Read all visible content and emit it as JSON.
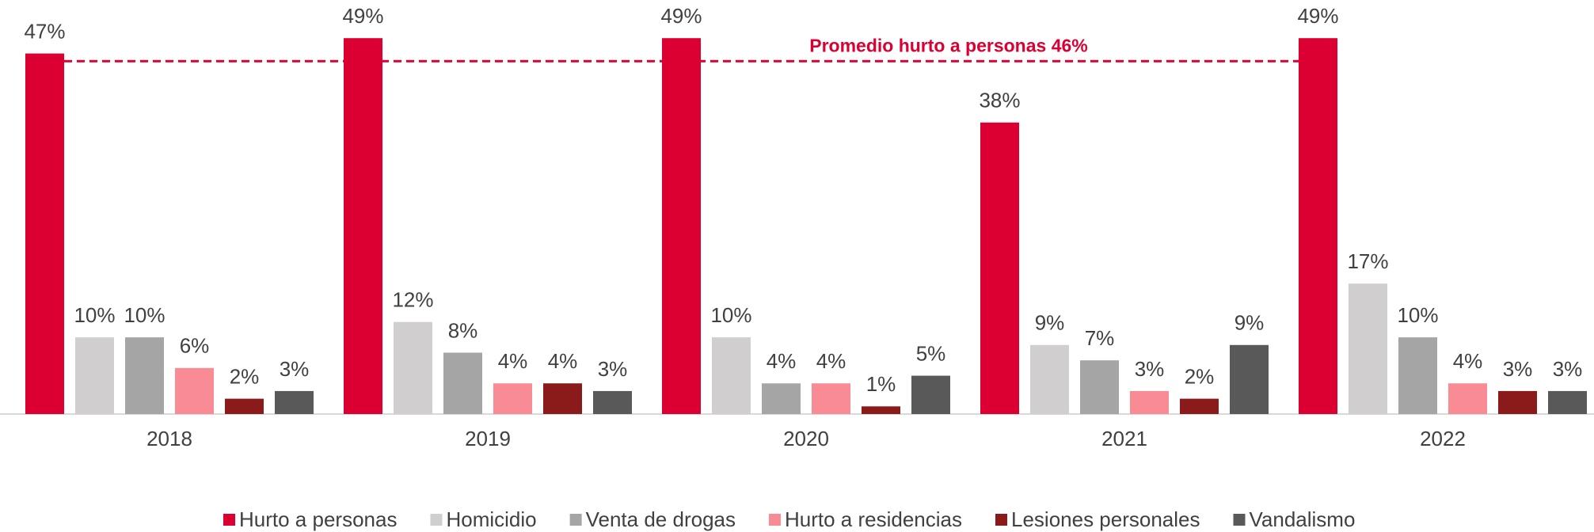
{
  "chart_data": {
    "type": "bar",
    "categories": [
      "2018",
      "2019",
      "2020",
      "2021",
      "2022"
    ],
    "series": [
      {
        "name": "Hurto a personas",
        "color": "#dc0032",
        "values": [
          47,
          49,
          49,
          38,
          49
        ],
        "value_labels": [
          "47%",
          "49%",
          "49%",
          "38%",
          "49%"
        ]
      },
      {
        "name": "Homicidio",
        "color": "#d0cece",
        "values": [
          10,
          12,
          10,
          9,
          17
        ],
        "value_labels": [
          "10%",
          "12%",
          "10%",
          "9%",
          "17%"
        ]
      },
      {
        "name": "Venta de drogas",
        "color": "#a5a5a5",
        "values": [
          10,
          8,
          4,
          7,
          10
        ],
        "value_labels": [
          "10%",
          "8%",
          "4%",
          "7%",
          "10%"
        ]
      },
      {
        "name": "Hurto a residencias",
        "color": "#f98b95",
        "values": [
          6,
          4,
          4,
          3,
          4
        ],
        "value_labels": [
          "6%",
          "4%",
          "4%",
          "3%",
          "4%"
        ]
      },
      {
        "name": "Lesiones personales",
        "color": "#8b1a1a",
        "values": [
          2,
          4,
          1,
          2,
          3
        ],
        "value_labels": [
          "2%",
          "4%",
          "1%",
          "2%",
          "3%"
        ]
      },
      {
        "name": "Vandalismo",
        "color": "#595959",
        "values": [
          3,
          3,
          5,
          9,
          3
        ],
        "value_labels": [
          "3%",
          "3%",
          "5%",
          "9%",
          "3%"
        ]
      }
    ],
    "reference_line": {
      "label": "Promedio hurto a personas 46%",
      "value": 46,
      "color": "#dc0032"
    },
    "legend": "bottom"
  }
}
